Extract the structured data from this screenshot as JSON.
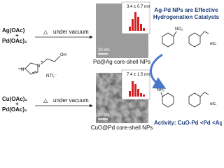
{
  "left": {
    "top": {
      "reagent1": "Ag(OAc)",
      "plus": "+",
      "reagent2": "Pd(OAc)₂",
      "delta": "△",
      "condition": "under vacuum"
    },
    "ionic_liquid": {
      "n1": "N",
      "n2": "N",
      "plus": "+",
      "oh": "OH",
      "anion": "NTf₂⁻"
    },
    "bottom": {
      "reagent1": "Cu(OAc)₂",
      "plus": "+",
      "reagent2": "Pd(OAc)₂",
      "delta": "△",
      "condition": "under vacuum"
    }
  },
  "center": {
    "top": {
      "size": "3.4 ± 0.7 nm",
      "scale": "20 nm",
      "caption": "Pd@Ag core-shell NPs"
    },
    "bottom": {
      "size": "7.4 ± 1.5 nm",
      "scale": "20 nm",
      "caption": "CuO@Pd core-shell NPs"
    }
  },
  "right": {
    "title_line1": "Ag-Pd NPs are Effective",
    "title_line2": "Hydrogenation Catalysts",
    "nitro": "NO₂",
    "etc_top": "etc.",
    "amine": "NH₂",
    "etc_bottom": "etc.",
    "activity": "Activity: CuO-Pd <Pd <Ag-Pd"
  }
}
